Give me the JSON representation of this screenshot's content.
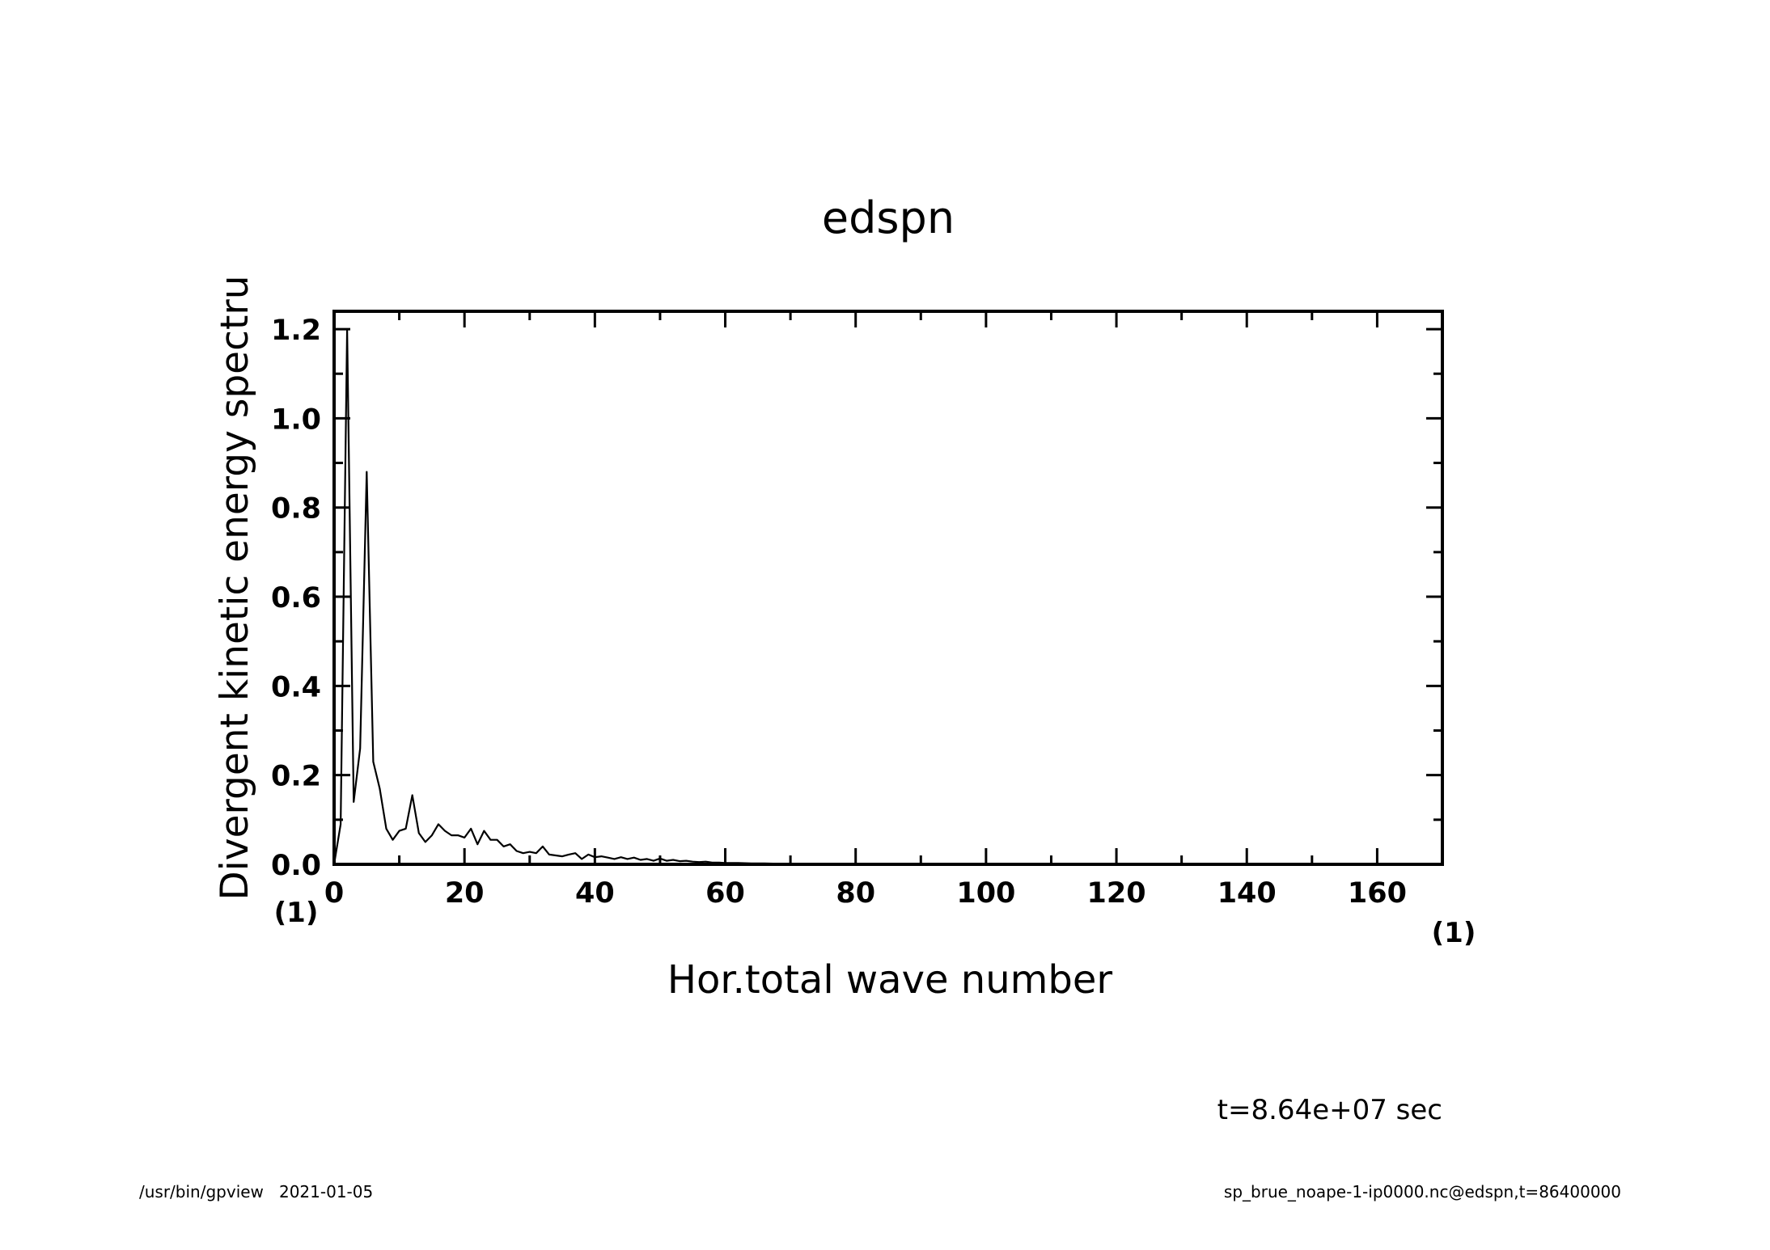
{
  "chart_data": {
    "type": "line",
    "title": "edspn",
    "xlabel": "Hor.total wave number",
    "ylabel": "Divergent kinetic energy spectru",
    "x_unit_label": "(1)",
    "y_unit_label": "(1)",
    "xlim": [
      0,
      170
    ],
    "ylim": [
      0,
      1.24
    ],
    "xticks": [
      "0",
      "20",
      "40",
      "60",
      "80",
      "100",
      "120",
      "140",
      "160"
    ],
    "yticks": [
      "0.0",
      "0.2",
      "0.4",
      "0.6",
      "0.8",
      "1.0",
      "1.2"
    ],
    "grid": false,
    "series": [
      {
        "x": [
          0,
          1,
          2,
          3,
          4,
          5,
          6,
          7,
          8,
          9,
          10,
          11,
          12,
          13,
          14,
          15,
          16,
          17,
          18,
          19,
          20,
          21,
          22,
          23,
          24,
          25,
          26,
          27,
          28,
          29,
          30,
          31,
          32,
          33,
          34,
          35,
          36,
          37,
          38,
          39,
          40,
          41,
          42,
          43,
          44,
          45,
          46,
          47,
          48,
          49,
          50,
          51,
          52,
          53,
          54,
          55,
          56,
          57,
          58,
          59,
          60,
          62,
          64,
          66,
          68,
          70,
          72,
          75,
          80,
          90,
          100,
          120,
          140,
          160,
          170
        ],
        "values": [
          0.0,
          0.09,
          1.2,
          0.14,
          0.26,
          0.88,
          0.23,
          0.17,
          0.08,
          0.055,
          0.075,
          0.08,
          0.155,
          0.07,
          0.05,
          0.065,
          0.09,
          0.075,
          0.065,
          0.065,
          0.06,
          0.08,
          0.045,
          0.075,
          0.055,
          0.055,
          0.04,
          0.045,
          0.03,
          0.025,
          0.028,
          0.025,
          0.04,
          0.022,
          0.02,
          0.018,
          0.022,
          0.025,
          0.012,
          0.022,
          0.016,
          0.018,
          0.015,
          0.012,
          0.016,
          0.012,
          0.015,
          0.01,
          0.012,
          0.008,
          0.013,
          0.008,
          0.01,
          0.007,
          0.008,
          0.006,
          0.005,
          0.006,
          0.004,
          0.004,
          0.003,
          0.003,
          0.002,
          0.002,
          0.0015,
          0.0012,
          0.001,
          0.0008,
          0.0005,
          0.0003,
          0.0002,
          0.0001,
          0.0001,
          0.0001,
          0.0001
        ]
      }
    ]
  },
  "time_label": "t=8.64e+07 sec",
  "footer_left": "/usr/bin/gpview   2021-01-05",
  "footer_right": "sp_brue_noape-1-ip0000.nc@edspn,t=86400000"
}
